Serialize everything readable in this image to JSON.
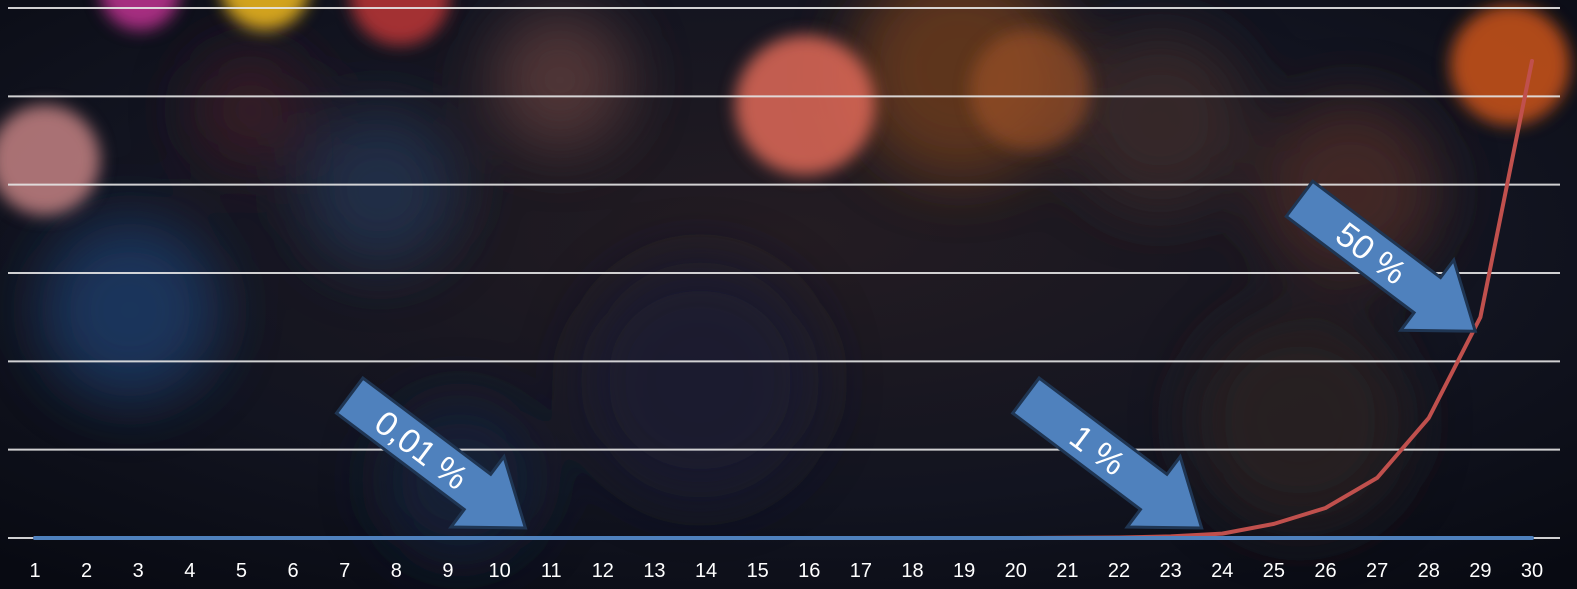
{
  "chart_data": {
    "type": "line",
    "x": [
      1,
      2,
      3,
      4,
      5,
      6,
      7,
      8,
      9,
      10,
      11,
      12,
      13,
      14,
      15,
      16,
      17,
      18,
      19,
      20,
      21,
      22,
      23,
      24,
      25,
      26,
      27,
      28,
      29,
      30
    ],
    "ylim": [
      0,
      300
    ],
    "y_gridlines": [
      0,
      50,
      100,
      150,
      200,
      250,
      300
    ],
    "grid": "horizontal",
    "series": [
      {
        "color": "#c0504d",
        "values": [
          0,
          0,
          0,
          0,
          0,
          0,
          0,
          0,
          0,
          0,
          0,
          0,
          0,
          0,
          0,
          0,
          0,
          0,
          0,
          0,
          0.1,
          0.3,
          0.9,
          2.5,
          8,
          17,
          34,
          68,
          125,
          270
        ]
      },
      {
        "color": "#4f81bd",
        "values": [
          0,
          0,
          0,
          0,
          0,
          0,
          0,
          0,
          0,
          0,
          0,
          0,
          0,
          0,
          0,
          0,
          0,
          0,
          0,
          0,
          0,
          0,
          0,
          0,
          0,
          0,
          0,
          0,
          0,
          0
        ]
      }
    ],
    "annotations": [
      {
        "text": "0,01 %",
        "points_to_x": 10.5
      },
      {
        "text": "1 %",
        "points_to_x": 23.6
      },
      {
        "text": "50 %",
        "points_to_x": 28.9
      }
    ],
    "colors": {
      "arrow_fill": "#4f81bd",
      "arrow_stroke": "#1f3552",
      "gridline": "#e6e6e6"
    }
  }
}
